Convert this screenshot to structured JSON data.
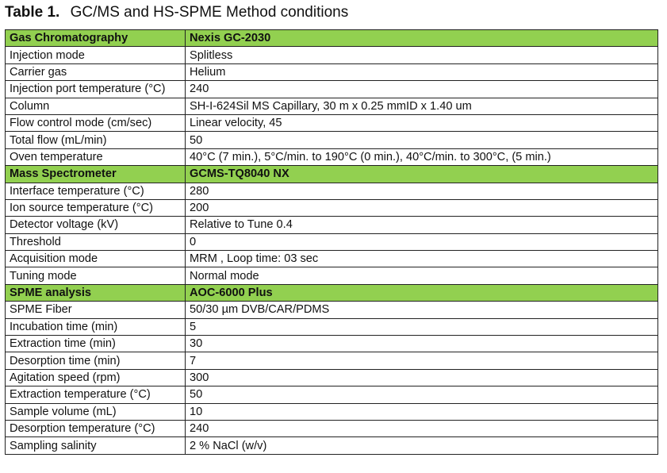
{
  "title": {
    "number": "Table 1.",
    "text": "GC/MS and HS-SPME Method conditions"
  },
  "colors": {
    "section_header_bg": "#92D050",
    "border": "#222222"
  },
  "table": {
    "rows": [
      {
        "type": "section",
        "label": "Gas Chromatography",
        "value": "Nexis GC-2030"
      },
      {
        "type": "data",
        "label": "Injection mode",
        "value": "Splitless"
      },
      {
        "type": "data",
        "label": "Carrier gas",
        "value": "Helium"
      },
      {
        "type": "data",
        "label": "Injection port temperature (°C)",
        "value": "240"
      },
      {
        "type": "data",
        "label": "Column",
        "value": "SH-I-624Sil MS Capillary, 30 m x 0.25 mmID x 1.40 um"
      },
      {
        "type": "data",
        "label": "Flow control mode (cm/sec)",
        "value": "Linear velocity, 45"
      },
      {
        "type": "data",
        "label": "Total flow (mL/min)",
        "value": "50"
      },
      {
        "type": "data",
        "label": "Oven temperature",
        "value": "40°C (7 min.), 5°C/min. to 190°C (0 min.), 40°C/min. to 300°C, (5 min.)"
      },
      {
        "type": "section",
        "label": "Mass Spectrometer",
        "value": "GCMS-TQ8040 NX"
      },
      {
        "type": "data",
        "label": "Interface temperature (°C)",
        "value": "280"
      },
      {
        "type": "data",
        "label": "Ion source temperature (°C)",
        "value": "200"
      },
      {
        "type": "data",
        "label": "Detector voltage (kV)",
        "value": "Relative to Tune 0.4"
      },
      {
        "type": "data",
        "label": "Threshold",
        "value": "0"
      },
      {
        "type": "data",
        "label": "Acquisition mode",
        "value": "MRM , Loop time: 03 sec"
      },
      {
        "type": "data",
        "label": "Tuning mode",
        "value": "Normal mode"
      },
      {
        "type": "section",
        "label": "SPME analysis",
        "value": "AOC-6000 Plus"
      },
      {
        "type": "data",
        "label": "SPME Fiber",
        "value": "50/30 µm DVB/CAR/PDMS"
      },
      {
        "type": "data",
        "label": "Incubation time (min)",
        "value": "5"
      },
      {
        "type": "data",
        "label": "Extraction time (min)",
        "value": "30"
      },
      {
        "type": "data",
        "label": "Desorption time (min)",
        "value": "7"
      },
      {
        "type": "data",
        "label": "Agitation speed (rpm)",
        "value": "300"
      },
      {
        "type": "data",
        "label": "Extraction temperature (°C)",
        "value": "50"
      },
      {
        "type": "data",
        "label": "Sample volume (mL)",
        "value": "10"
      },
      {
        "type": "data",
        "label": "Desorption temperature (°C)",
        "value": "240"
      },
      {
        "type": "data",
        "label": "Sampling salinity",
        "value": "2 % NaCl (w/v)"
      }
    ]
  }
}
